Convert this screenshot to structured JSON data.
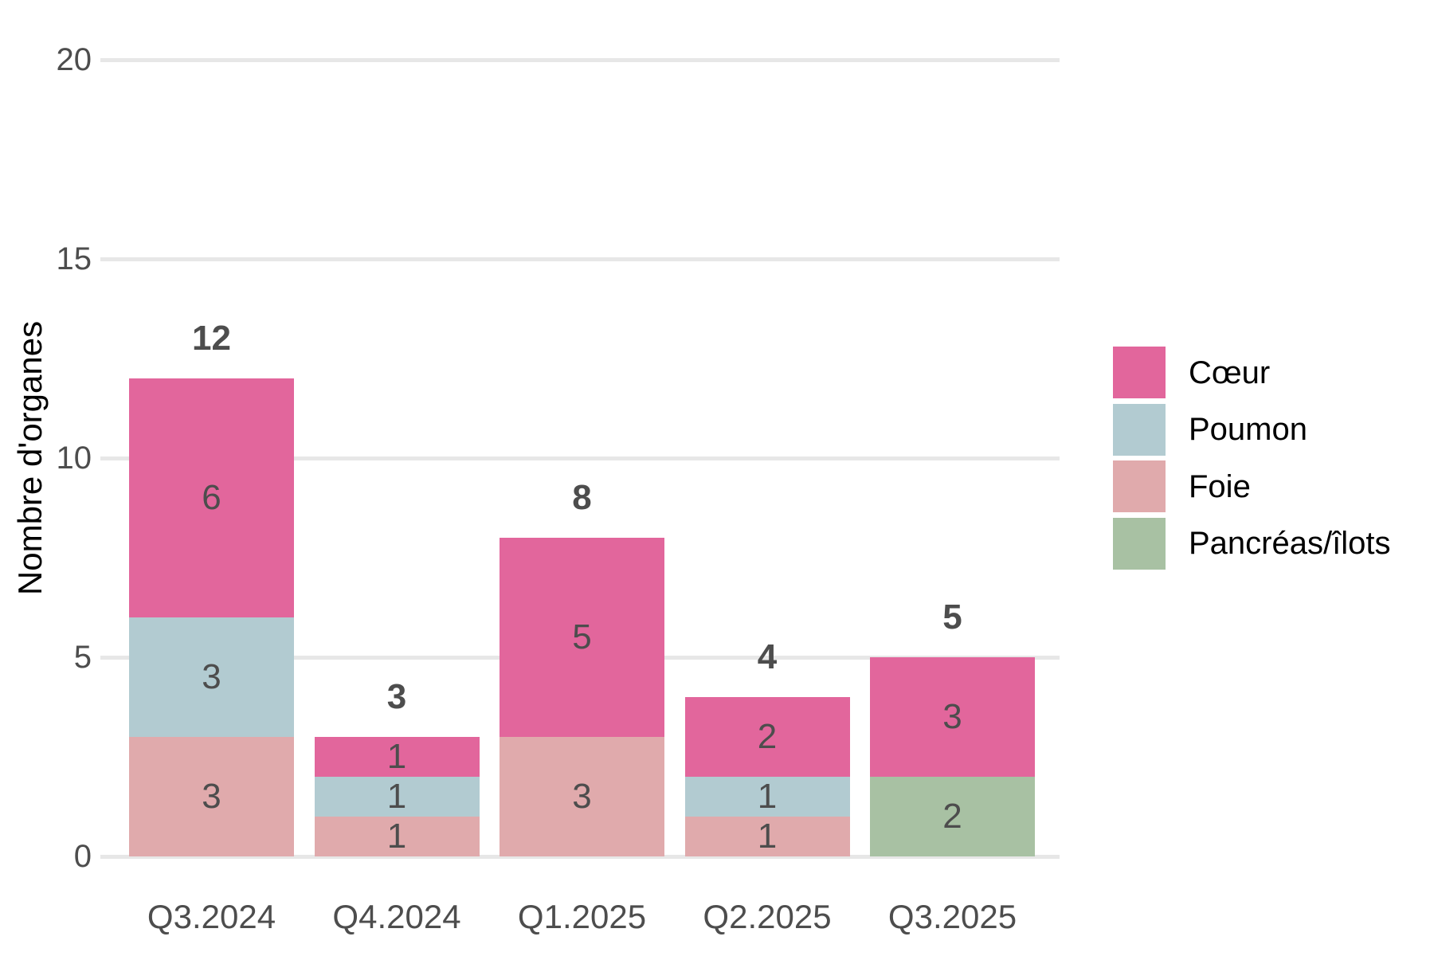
{
  "chart_data": {
    "type": "bar",
    "stacked": true,
    "title": "",
    "xlabel": "",
    "ylabel": "Nombre d'organes",
    "categories": [
      "Q3.2024",
      "Q4.2024",
      "Q1.2025",
      "Q2.2025",
      "Q3.2025"
    ],
    "series": [
      {
        "name": "Foie",
        "color": "#e0aaac",
        "values": [
          3,
          1,
          3,
          1,
          0
        ]
      },
      {
        "name": "Poumon",
        "color": "#b2cbd1",
        "values": [
          3,
          1,
          0,
          1,
          0
        ]
      },
      {
        "name": "Pancréas/îlots",
        "color": "#a8c1a3",
        "values": [
          0,
          0,
          0,
          0,
          2
        ]
      },
      {
        "name": "Cœur",
        "color": "#e2669c",
        "values": [
          6,
          1,
          5,
          2,
          3
        ]
      }
    ],
    "totals": [
      12,
      3,
      8,
      4,
      5
    ],
    "yticks": [
      0,
      5,
      10,
      15,
      20
    ],
    "ylim": [
      0,
      20
    ],
    "grid": "horizontal",
    "legend": {
      "position": "right",
      "items": [
        {
          "label": "Cœur",
          "color": "#e2669c"
        },
        {
          "label": "Poumon",
          "color": "#b2cbd1"
        },
        {
          "label": "Foie",
          "color": "#e0aaac"
        },
        {
          "label": "Pancréas/îlots",
          "color": "#a8c1a3"
        }
      ]
    },
    "colors": {
      "segment_label": "#4d4d4d",
      "total_label": "#4d4d4d",
      "tick_label": "#4d4d4d",
      "gridline": "#e7e7e7",
      "axis_title": "#000000",
      "background": "#ffffff"
    }
  }
}
